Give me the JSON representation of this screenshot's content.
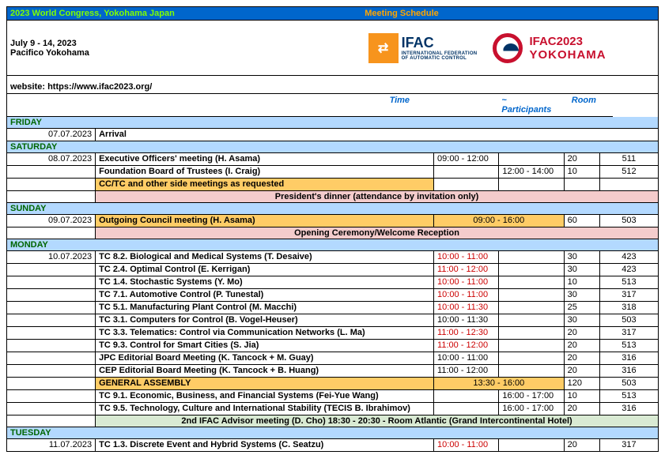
{
  "banner": {
    "left": "2023 World Congress, Yokohama Japan",
    "right": "Meeting Schedule"
  },
  "header": {
    "dates": "July 9 - 14, 2023",
    "venue": "Pacifico Yokohama",
    "website_label": "website: https://www.ifac2023.org/",
    "ifac_name": "IFAC",
    "ifac_sub": "INTERNATIONAL FEDERATION\nOF AUTOMATIC CONTROL",
    "yoko_l1": "IFAC2023",
    "yoko_l2": "YOKOHAMA"
  },
  "columns": {
    "time": "Time",
    "participants": "~ Participants",
    "room": "Room"
  },
  "days": {
    "friday": "FRIDAY",
    "saturday": "SATURDAY",
    "sunday": "SUNDAY",
    "monday": "MONDAY",
    "tuesday": "TUESDAY"
  },
  "friday": {
    "date": "07.07.2023",
    "arrival": "Arrival"
  },
  "saturday": {
    "date": "08.07.2023",
    "r1": {
      "desc": "Executive Officers' meeting (H. Asama)",
      "t1": "09:00 - 12:00",
      "p": "20",
      "room": "511"
    },
    "r2": {
      "desc": "Foundation Board of Trustees (I. Craig)",
      "t2": "12:00 - 14:00",
      "p": "10",
      "room": "512"
    },
    "r3": {
      "desc": "CC/TC and other side meetings as requested"
    },
    "dinner": "President's dinner (attendance by invitation only)"
  },
  "sunday": {
    "date": "09.07.2023",
    "r1": {
      "desc": "Outgoing Council meeting (H. Asama)",
      "t": "09:00 - 16:00",
      "p": "60",
      "room": "503"
    },
    "ceremony": "Opening Ceremony/Welcome Reception"
  },
  "monday": {
    "date": "10.07.2023",
    "rows": [
      {
        "desc": "TC 8.2. Biological and Medical Systems (T. Desaive)",
        "t1": "10:00 - 11:00",
        "red": true,
        "p": "30",
        "room": "423"
      },
      {
        "desc": "TC 2.4. Optimal Control (E. Kerrigan)",
        "t1": "11:00 - 12:00",
        "red": true,
        "p": "30",
        "room": "423"
      },
      {
        "desc": "TC 1.4. Stochastic Systems (Y. Mo)",
        "t1": "10:00 - 11:00",
        "red": true,
        "p": "10",
        "room": "513"
      },
      {
        "desc": "TC 7.1. Automotive Control (P. Tunestal)",
        "t1": "10:00 - 11:00",
        "red": true,
        "p": "30",
        "room": "317"
      },
      {
        "desc": "TC 5.1. Manufacturing Plant Control (M. Macchi)",
        "t1": "10:00 - 11:30",
        "red": true,
        "p": "25",
        "room": "318"
      },
      {
        "desc": "TC 3.1. Computers for Control (B. Vogel-Heuser)",
        "t1": "10:00 - 11:30",
        "red": false,
        "p": "30",
        "room": "503"
      },
      {
        "desc": "TC 3.3. Telematics: Control via Communication Networks (L. Ma)",
        "t1": "11:00 - 12:30",
        "red": true,
        "p": "20",
        "room": "317"
      },
      {
        "desc": "TC 9.3. Control for Smart Cities (S. Jia)",
        "t1": "11:00 - 12:00",
        "red": true,
        "p": "20",
        "room": "513"
      },
      {
        "desc": "JPC Editorial Board Meeting (K. Tancock + M. Guay)",
        "t1": "10:00 - 11:00",
        "red": false,
        "p": "20",
        "room": "316"
      },
      {
        "desc": "CEP Editorial Board Meeting (K. Tancock + B. Huang)",
        "t1": "11:00 - 12:00",
        "red": false,
        "p": "20",
        "room": "316"
      }
    ],
    "ga": {
      "desc": "GENERAL ASSEMBLY",
      "t": "13:30 - 16:00",
      "p": "120",
      "room": "503"
    },
    "after": [
      {
        "desc": "TC 9.1. Economic, Business, and Financial Systems (Fei-Yue Wang)",
        "t2": "16:00 - 17:00",
        "p": "10",
        "room": "513"
      },
      {
        "desc": "TC 9.5. Technology, Culture and International Stability (TECIS  B. Ibrahimov)",
        "t2": "16:00 - 17:00",
        "p": "20",
        "room": "316"
      }
    ],
    "advisor": "2nd IFAC Advisor meeting (D. Cho) 18:30 - 20:30 - Room Atlantic (Grand Intercontinental Hotel)"
  },
  "tuesday": {
    "date": "11.07.2023",
    "r1": {
      "desc": "TC 1.3. Discrete Event and Hybrid Systems (C. Seatzu)",
      "t1": "10:00 - 11:00",
      "red": true,
      "p": "20",
      "room": "317"
    }
  }
}
